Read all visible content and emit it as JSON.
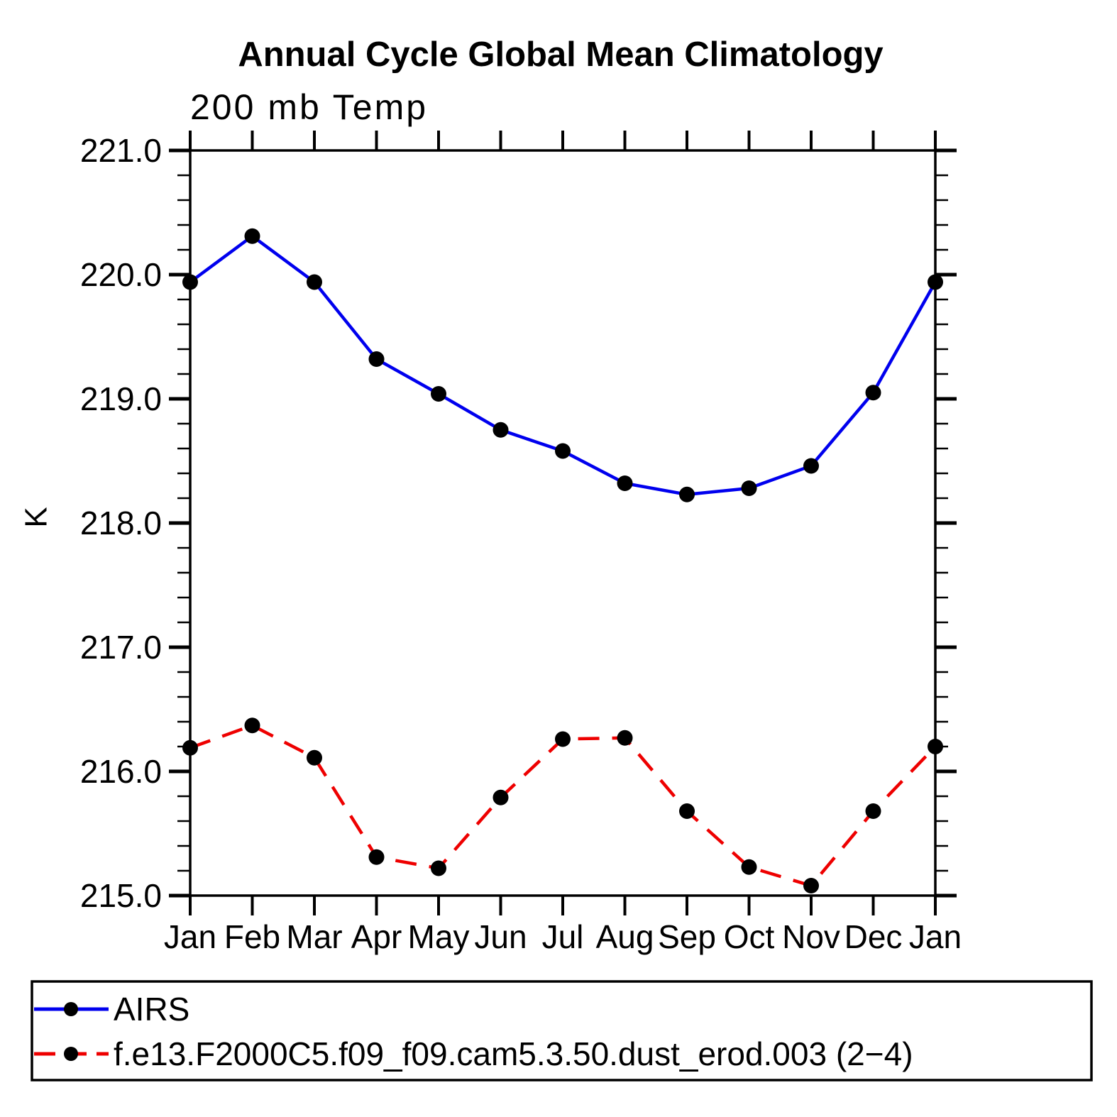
{
  "title": "Annual Cycle Global Mean Climatology",
  "subtitle": "200 mb Temp",
  "chart_data": {
    "type": "line",
    "title": "Annual Cycle Global Mean Climatology",
    "subtitle": "200 mb Temp",
    "xlabel": "",
    "ylabel": "K",
    "categories": [
      "Jan",
      "Feb",
      "Mar",
      "Apr",
      "May",
      "Jun",
      "Jul",
      "Aug",
      "Sep",
      "Oct",
      "Nov",
      "Dec",
      "Jan"
    ],
    "ylim": [
      215.0,
      221.0
    ],
    "ytick_major_interval": 1.0,
    "ytick_minor_interval": 0.2,
    "ytick_labels": [
      "221.0",
      "220.0",
      "219.0",
      "218.0",
      "217.0",
      "216.0",
      "215.0"
    ],
    "grid": false,
    "legend_position": "bottom-left-box",
    "frame_color": "#000000",
    "marker_color": "#000000",
    "series": [
      {
        "name": "AIRS",
        "color": "#0000EE",
        "style": "solid",
        "marker": "circle",
        "values": [
          219.94,
          220.31,
          219.94,
          219.32,
          219.04,
          218.75,
          218.58,
          218.32,
          218.23,
          218.28,
          218.46,
          219.05,
          219.94
        ]
      },
      {
        "name": "f.e13.F2000C5.f09_f09.cam5.3.50.dust_erod.003 (2−4)",
        "color": "#EE0000",
        "style": "dashed",
        "marker": "circle",
        "values": [
          216.19,
          216.37,
          216.11,
          215.31,
          215.22,
          215.79,
          216.26,
          216.27,
          215.68,
          215.23,
          215.08,
          215.68,
          216.2
        ]
      }
    ]
  }
}
